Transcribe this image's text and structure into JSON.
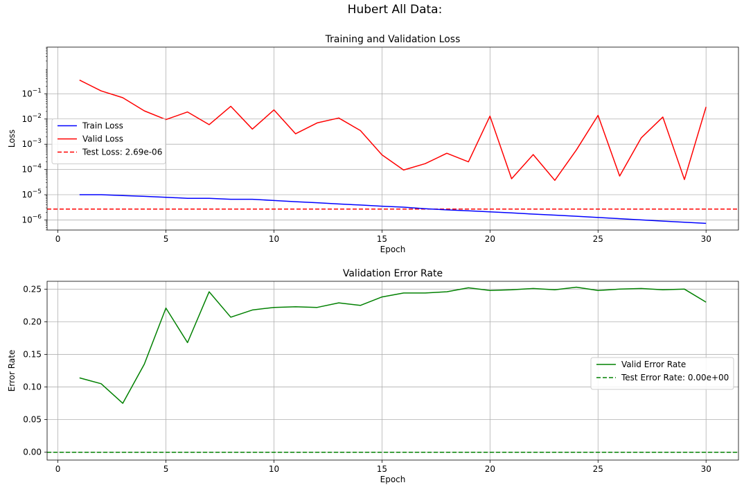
{
  "suptitle": "Hubert All Data:",
  "chart_data": [
    {
      "type": "line",
      "title": "Training and Validation Loss",
      "xlabel": "Epoch",
      "ylabel": "Loss",
      "yscale": "log",
      "grid": true,
      "legend_position": "center-left",
      "xlim": [
        -0.5,
        31.5
      ],
      "ylim_log10": [
        -6.4,
        0.85
      ],
      "xticks": [
        0,
        5,
        10,
        15,
        20,
        25,
        30
      ],
      "xtick_labels": [
        "0",
        "5",
        "10",
        "15",
        "20",
        "25",
        "30"
      ],
      "yticks_exp": [
        -1,
        -2,
        -3,
        -4,
        -5,
        -6
      ],
      "x": [
        1,
        2,
        3,
        4,
        5,
        6,
        7,
        8,
        9,
        10,
        11,
        12,
        13,
        14,
        15,
        16,
        17,
        18,
        19,
        20,
        21,
        22,
        23,
        24,
        25,
        26,
        27,
        28,
        29,
        30
      ],
      "series": [
        {
          "name": "Train Loss",
          "color": "#0000ff",
          "style": "solid",
          "values": [
            1e-05,
            1e-05,
            9.3e-06,
            8.6e-06,
            7.9e-06,
            7.2e-06,
            7.2e-06,
            6.6e-06,
            6.6e-06,
            5.9e-06,
            5.3e-06,
            4.8e-06,
            4.3e-06,
            3.9e-06,
            3.5e-06,
            3.2e-06,
            2.8e-06,
            2.5e-06,
            2.3e-06,
            2.1e-06,
            1.9e-06,
            1.7e-06,
            1.55e-06,
            1.4e-06,
            1.25e-06,
            1.12e-06,
            1e-06,
            9e-07,
            8.1e-07,
            7.3e-07
          ]
        },
        {
          "name": "Valid Loss",
          "color": "#ff0000",
          "style": "solid",
          "values": [
            0.35,
            0.13,
            0.07,
            0.021,
            0.0095,
            0.019,
            0.006,
            0.032,
            0.004,
            0.023,
            0.0026,
            0.007,
            0.011,
            0.0035,
            0.00038,
            9.5e-05,
            0.00017,
            0.00044,
            0.0002,
            0.013,
            4.3e-05,
            0.00039,
            3.7e-05,
            0.0006,
            0.014,
            5.5e-05,
            0.0018,
            0.012,
            4e-05,
            0.03
          ]
        }
      ],
      "hlines": [
        {
          "name": "Test Loss: 2.69e-06",
          "value": 2.69e-06,
          "color": "#ff0000",
          "style": "dashed"
        }
      ]
    },
    {
      "type": "line",
      "title": "Validation Error Rate",
      "xlabel": "Epoch",
      "ylabel": "Error Rate",
      "grid": true,
      "legend_position": "center-right",
      "xlim": [
        -0.5,
        31.5
      ],
      "ylim": [
        -0.012,
        0.262
      ],
      "xticks": [
        0,
        5,
        10,
        15,
        20,
        25,
        30
      ],
      "xtick_labels": [
        "0",
        "5",
        "10",
        "15",
        "20",
        "25",
        "30"
      ],
      "yticks": [
        0.0,
        0.05,
        0.1,
        0.15,
        0.2,
        0.25
      ],
      "ytick_labels": [
        "0.00",
        "0.05",
        "0.10",
        "0.15",
        "0.20",
        "0.25"
      ],
      "x": [
        1,
        2,
        3,
        4,
        5,
        6,
        7,
        8,
        9,
        10,
        11,
        12,
        13,
        14,
        15,
        16,
        17,
        18,
        19,
        20,
        21,
        22,
        23,
        24,
        25,
        26,
        27,
        28,
        29,
        30
      ],
      "series": [
        {
          "name": "Valid Error Rate",
          "color": "#008000",
          "style": "solid",
          "values": [
            0.114,
            0.105,
            0.075,
            0.135,
            0.221,
            0.168,
            0.246,
            0.207,
            0.218,
            0.222,
            0.223,
            0.222,
            0.229,
            0.225,
            0.238,
            0.244,
            0.244,
            0.246,
            0.252,
            0.248,
            0.249,
            0.251,
            0.249,
            0.253,
            0.248,
            0.25,
            0.251,
            0.249,
            0.25,
            0.23
          ]
        }
      ],
      "hlines": [
        {
          "name": "Test Error Rate: 0.00e+00",
          "value": 0.0,
          "color": "#008000",
          "style": "dashed"
        }
      ]
    }
  ]
}
